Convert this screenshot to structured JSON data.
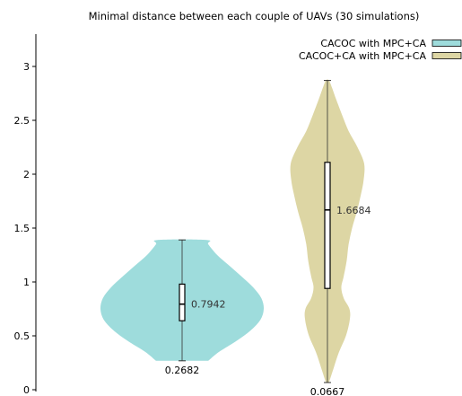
{
  "chart_data": {
    "type": "violin",
    "title": "Minimal distance between each couple of UAVs (30 simulations)",
    "xlabel": "",
    "ylabel": "",
    "ylim": [
      0,
      3.3
    ],
    "yticks": [
      0,
      0.5,
      1,
      1.5,
      2,
      2.5,
      3
    ],
    "ytick_labels": [
      "0",
      "0.5",
      "1",
      "1.5",
      "2",
      "2.5",
      "3"
    ],
    "legend_position": "top-right",
    "series": [
      {
        "name": "CACOC with MPC+CA",
        "color": "#9edcdc",
        "median": 0.7942,
        "median_label": "0.7942",
        "min": 0.2682,
        "min_label": "0.2682",
        "max": 1.39,
        "q1": 0.64,
        "q3": 0.98,
        "density": [
          [
            0.2682,
            0.32
          ],
          [
            0.35,
            0.45
          ],
          [
            0.45,
            0.66
          ],
          [
            0.55,
            0.84
          ],
          [
            0.65,
            0.96
          ],
          [
            0.75,
            1.0
          ],
          [
            0.85,
            0.97
          ],
          [
            0.95,
            0.87
          ],
          [
            1.05,
            0.73
          ],
          [
            1.15,
            0.58
          ],
          [
            1.25,
            0.43
          ],
          [
            1.35,
            0.32
          ],
          [
            1.39,
            0.3
          ]
        ]
      },
      {
        "name": "CACOC+CA with MPC+CA",
        "color": "#ddd6a4",
        "median": 1.6684,
        "median_label": "1.6684",
        "min": 0.0667,
        "min_label": "0.0667",
        "max": 2.87,
        "q1": 0.94,
        "q3": 2.11,
        "density": [
          [
            0.0667,
            0.04
          ],
          [
            0.2,
            0.16
          ],
          [
            0.35,
            0.3
          ],
          [
            0.5,
            0.48
          ],
          [
            0.65,
            0.58
          ],
          [
            0.75,
            0.57
          ],
          [
            0.85,
            0.42
          ],
          [
            0.95,
            0.36
          ],
          [
            1.05,
            0.42
          ],
          [
            1.2,
            0.5
          ],
          [
            1.35,
            0.55
          ],
          [
            1.5,
            0.64
          ],
          [
            1.65,
            0.76
          ],
          [
            1.8,
            0.86
          ],
          [
            1.95,
            0.94
          ],
          [
            2.1,
            0.95
          ],
          [
            2.25,
            0.78
          ],
          [
            2.4,
            0.55
          ],
          [
            2.55,
            0.38
          ],
          [
            2.7,
            0.22
          ],
          [
            2.8,
            0.12
          ],
          [
            2.87,
            0.04
          ]
        ]
      }
    ]
  }
}
